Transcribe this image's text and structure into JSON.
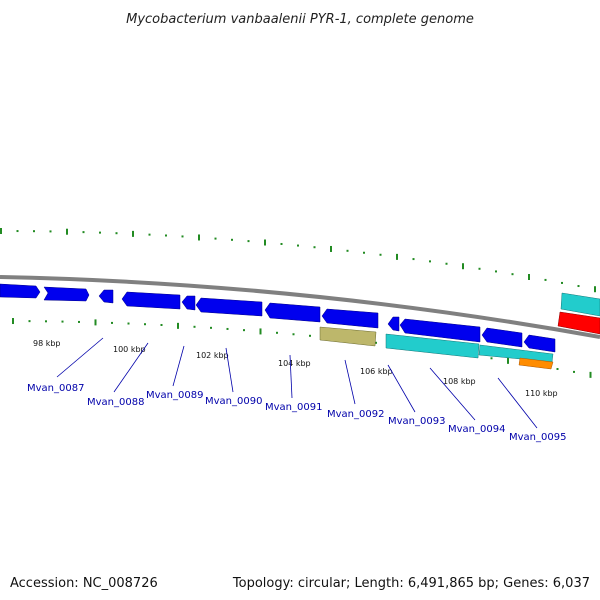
{
  "title": "Mycobacterium vanbaalenii PYR-1, complete genome",
  "accession": "Accession: NC_008726",
  "summary": "Topology: circular; Length: 6,491,865 bp; Genes: 6,037",
  "colors": {
    "backbone": "#808080",
    "forward_gene": "#0000ee",
    "reverse_gene": "#22cccc",
    "pseudo_gene": "#bdb76b",
    "rrna": "#ff0000",
    "trna": "#ff8c00",
    "tick": "#228b22",
    "label": "#0000aa"
  },
  "kbp_labels": [
    "98 kbp",
    "100 kbp",
    "102 kbp",
    "104 kbp",
    "106 kbp",
    "108 kbp",
    "110 kbp"
  ],
  "locus_tags": [
    "Mvan_0087",
    "Mvan_0088",
    "Mvan_0089",
    "Mvan_0090",
    "Mvan_0091",
    "Mvan_0092",
    "Mvan_0093",
    "Mvan_0094",
    "Mvan_0095"
  ]
}
